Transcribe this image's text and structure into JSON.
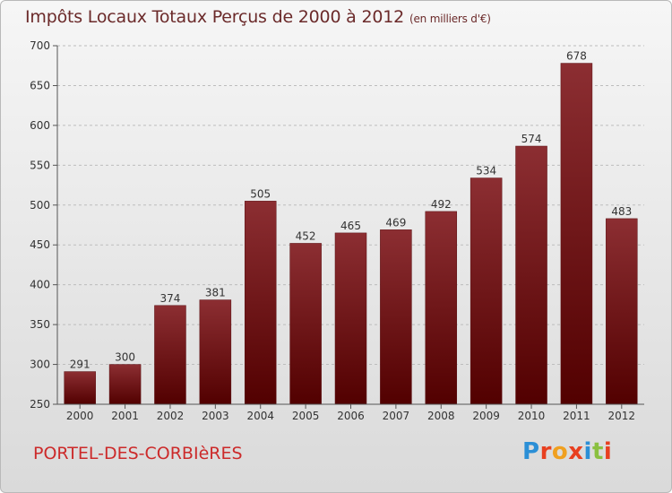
{
  "chart_data": {
    "type": "bar",
    "title": "Impôts Locaux Totaux Perçus de 2000 à 2012",
    "subtitle": "(en milliers d'€)",
    "categories": [
      "2000",
      "2001",
      "2002",
      "2003",
      "2004",
      "2005",
      "2006",
      "2007",
      "2008",
      "2009",
      "2010",
      "2011",
      "2012"
    ],
    "values": [
      291,
      300,
      374,
      381,
      505,
      452,
      465,
      469,
      492,
      534,
      574,
      678,
      483
    ],
    "ylim": [
      250,
      700
    ],
    "yticks": [
      250,
      300,
      350,
      400,
      450,
      500,
      550,
      600,
      650,
      700
    ],
    "xlabel": "",
    "ylabel": "",
    "bar_color": "#7a1c1f"
  },
  "footer": {
    "place_name": "PORTEL-DES-CORBIèRES",
    "logo_text": "Proxiti"
  }
}
